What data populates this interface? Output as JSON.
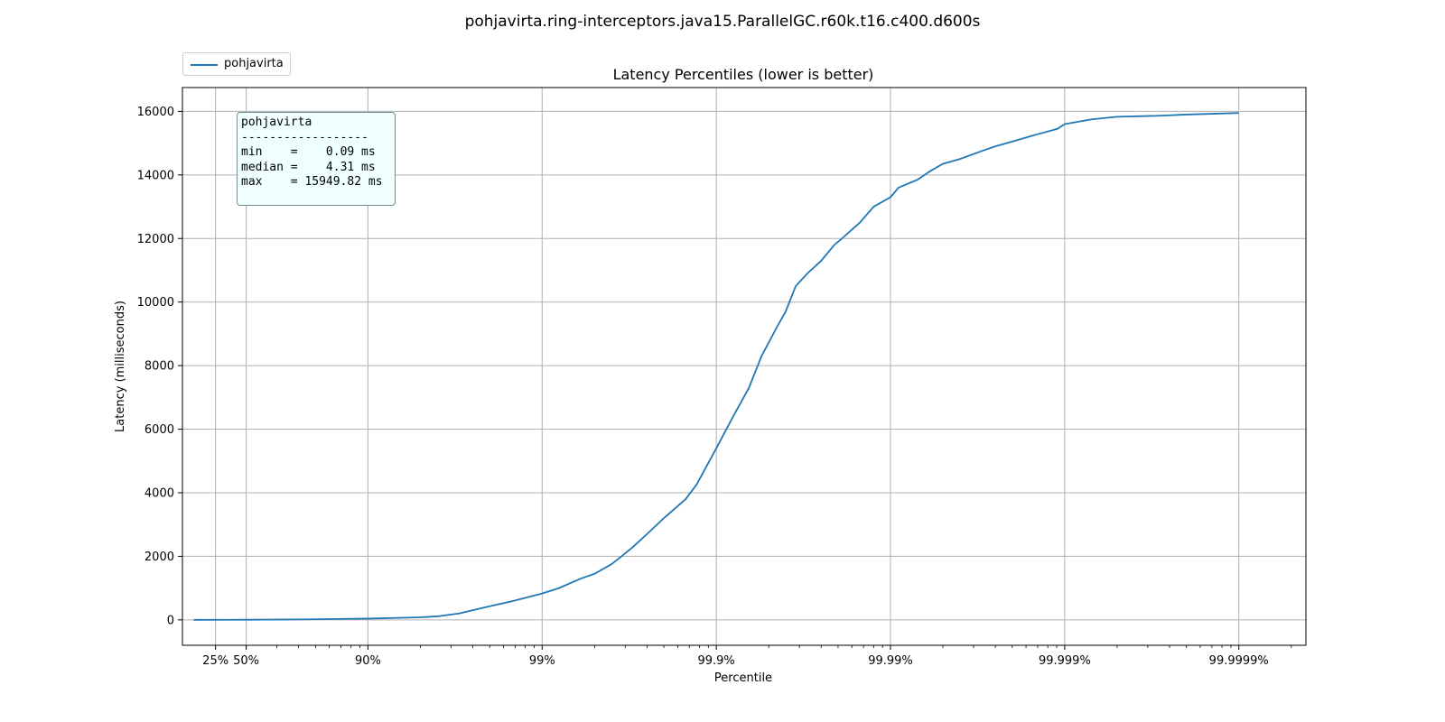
{
  "figure": {
    "suptitle": "pohjavirta.ring-interceptors.java15.ParallelGC.r60k.t16.c400.d600s"
  },
  "legend": {
    "label": "pohjavirta"
  },
  "stats_box": {
    "lines": [
      "pohjavirta",
      "------------------",
      "min    =    0.09 ms",
      "median =    4.31 ms",
      "max    = 15949.82 ms"
    ]
  },
  "colors": {
    "series": "#1f77b4",
    "grid": "#b0b0b0",
    "stats_bg": "#f0ffff"
  },
  "chart_data": {
    "type": "line",
    "title": "Latency Percentiles (lower is better)",
    "xlabel": "Percentile",
    "ylabel": "Latency (milliseconds)",
    "x_scale": "log of 1/(1-percentile)",
    "xticks": [
      {
        "percentile": 25,
        "label": "25%"
      },
      {
        "percentile": 50,
        "label": "50%"
      },
      {
        "percentile": 90,
        "label": "90%"
      },
      {
        "percentile": 99,
        "label": "99%"
      },
      {
        "percentile": 99.9,
        "label": "99.9%"
      },
      {
        "percentile": 99.99,
        "label": "99.99%"
      },
      {
        "percentile": 99.999,
        "label": "99.999%"
      },
      {
        "percentile": 99.9999,
        "label": "99.9999%"
      }
    ],
    "x_range_percentile": [
      0,
      99.9999
    ],
    "yticks": [
      0,
      2000,
      4000,
      6000,
      8000,
      10000,
      12000,
      14000,
      16000
    ],
    "ylim": [
      -800,
      16750
    ],
    "grid": true,
    "legend_position": "upper left, above axes",
    "series": [
      {
        "name": "pohjavirta",
        "points": [
          {
            "p": 0,
            "y": 0.09
          },
          {
            "p": 50,
            "y": 4.31
          },
          {
            "p": 75,
            "y": 12
          },
          {
            "p": 90,
            "y": 40
          },
          {
            "p": 95,
            "y": 80
          },
          {
            "p": 96,
            "y": 110
          },
          {
            "p": 97,
            "y": 200
          },
          {
            "p": 98,
            "y": 430
          },
          {
            "p": 98.5,
            "y": 580
          },
          {
            "p": 99,
            "y": 830
          },
          {
            "p": 99.2,
            "y": 1000
          },
          {
            "p": 99.4,
            "y": 1300
          },
          {
            "p": 99.5,
            "y": 1450
          },
          {
            "p": 99.6,
            "y": 1750
          },
          {
            "p": 99.65,
            "y": 2000
          },
          {
            "p": 99.7,
            "y": 2300
          },
          {
            "p": 99.75,
            "y": 2700
          },
          {
            "p": 99.8,
            "y": 3200
          },
          {
            "p": 99.85,
            "y": 3800
          },
          {
            "p": 99.87,
            "y": 4250
          },
          {
            "p": 99.9,
            "y": 5400
          },
          {
            "p": 99.92,
            "y": 6400
          },
          {
            "p": 99.935,
            "y": 7300
          },
          {
            "p": 99.945,
            "y": 8300
          },
          {
            "p": 99.955,
            "y": 9200
          },
          {
            "p": 99.96,
            "y": 9700
          },
          {
            "p": 99.965,
            "y": 10500
          },
          {
            "p": 99.97,
            "y": 10900
          },
          {
            "p": 99.975,
            "y": 11300
          },
          {
            "p": 99.979,
            "y": 11800
          },
          {
            "p": 99.981,
            "y": 12000
          },
          {
            "p": 99.985,
            "y": 12500
          },
          {
            "p": 99.9875,
            "y": 13000
          },
          {
            "p": 99.99,
            "y": 13300
          },
          {
            "p": 99.991,
            "y": 13600
          },
          {
            "p": 99.993,
            "y": 13850
          },
          {
            "p": 99.994,
            "y": 14100
          },
          {
            "p": 99.995,
            "y": 14350
          },
          {
            "p": 99.996,
            "y": 14500
          },
          {
            "p": 99.997,
            "y": 14750
          },
          {
            "p": 99.9975,
            "y": 14900
          },
          {
            "p": 99.998,
            "y": 15050
          },
          {
            "p": 99.9985,
            "y": 15250
          },
          {
            "p": 99.9989,
            "y": 15450
          },
          {
            "p": 99.999,
            "y": 15600
          },
          {
            "p": 99.9993,
            "y": 15750
          },
          {
            "p": 99.9995,
            "y": 15830
          },
          {
            "p": 99.9997,
            "y": 15860
          },
          {
            "p": 99.9998,
            "y": 15900
          },
          {
            "p": 99.9999,
            "y": 15949.82
          }
        ]
      }
    ]
  }
}
